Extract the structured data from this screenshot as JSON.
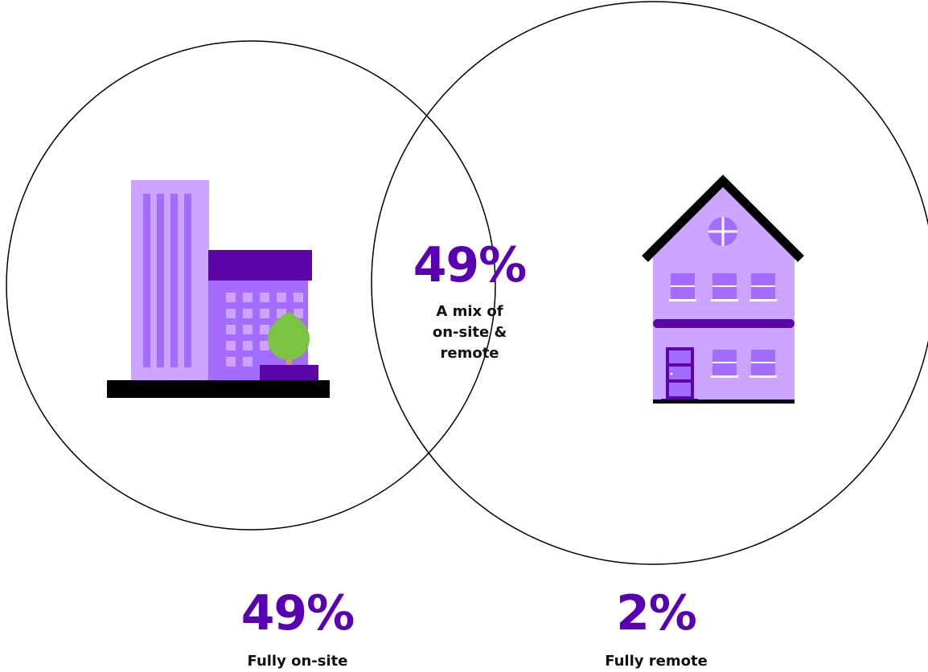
{
  "diagram": {
    "type": "venn",
    "sets": [
      {
        "id": "onsite",
        "icon": "office-building-icon"
      },
      {
        "id": "remote",
        "icon": "house-icon"
      }
    ],
    "segments": {
      "overlap": {
        "value": "49%",
        "label_lines": [
          "A mix of",
          "on-site &",
          "remote"
        ]
      },
      "left": {
        "value": "49%",
        "label": "Fully on-site"
      },
      "right": {
        "value": "2%",
        "label": "Fully remote"
      }
    }
  },
  "chart_data": {
    "type": "venn",
    "sets": [
      "Fully on-site",
      "Fully remote"
    ],
    "values": [
      {
        "segment": "Fully on-site",
        "percent": 49
      },
      {
        "segment": "A mix of on-site & remote",
        "percent": 49
      },
      {
        "segment": "Fully remote",
        "percent": 2
      }
    ]
  },
  "colors": {
    "accent": "#5a00b3",
    "light_purple": "#cba5ff",
    "mid_purple": "#a46cff",
    "dark_purple": "#5c05a8",
    "tree_green": "#7cc243",
    "tree_trunk": "#bfa070",
    "black": "#000000"
  }
}
